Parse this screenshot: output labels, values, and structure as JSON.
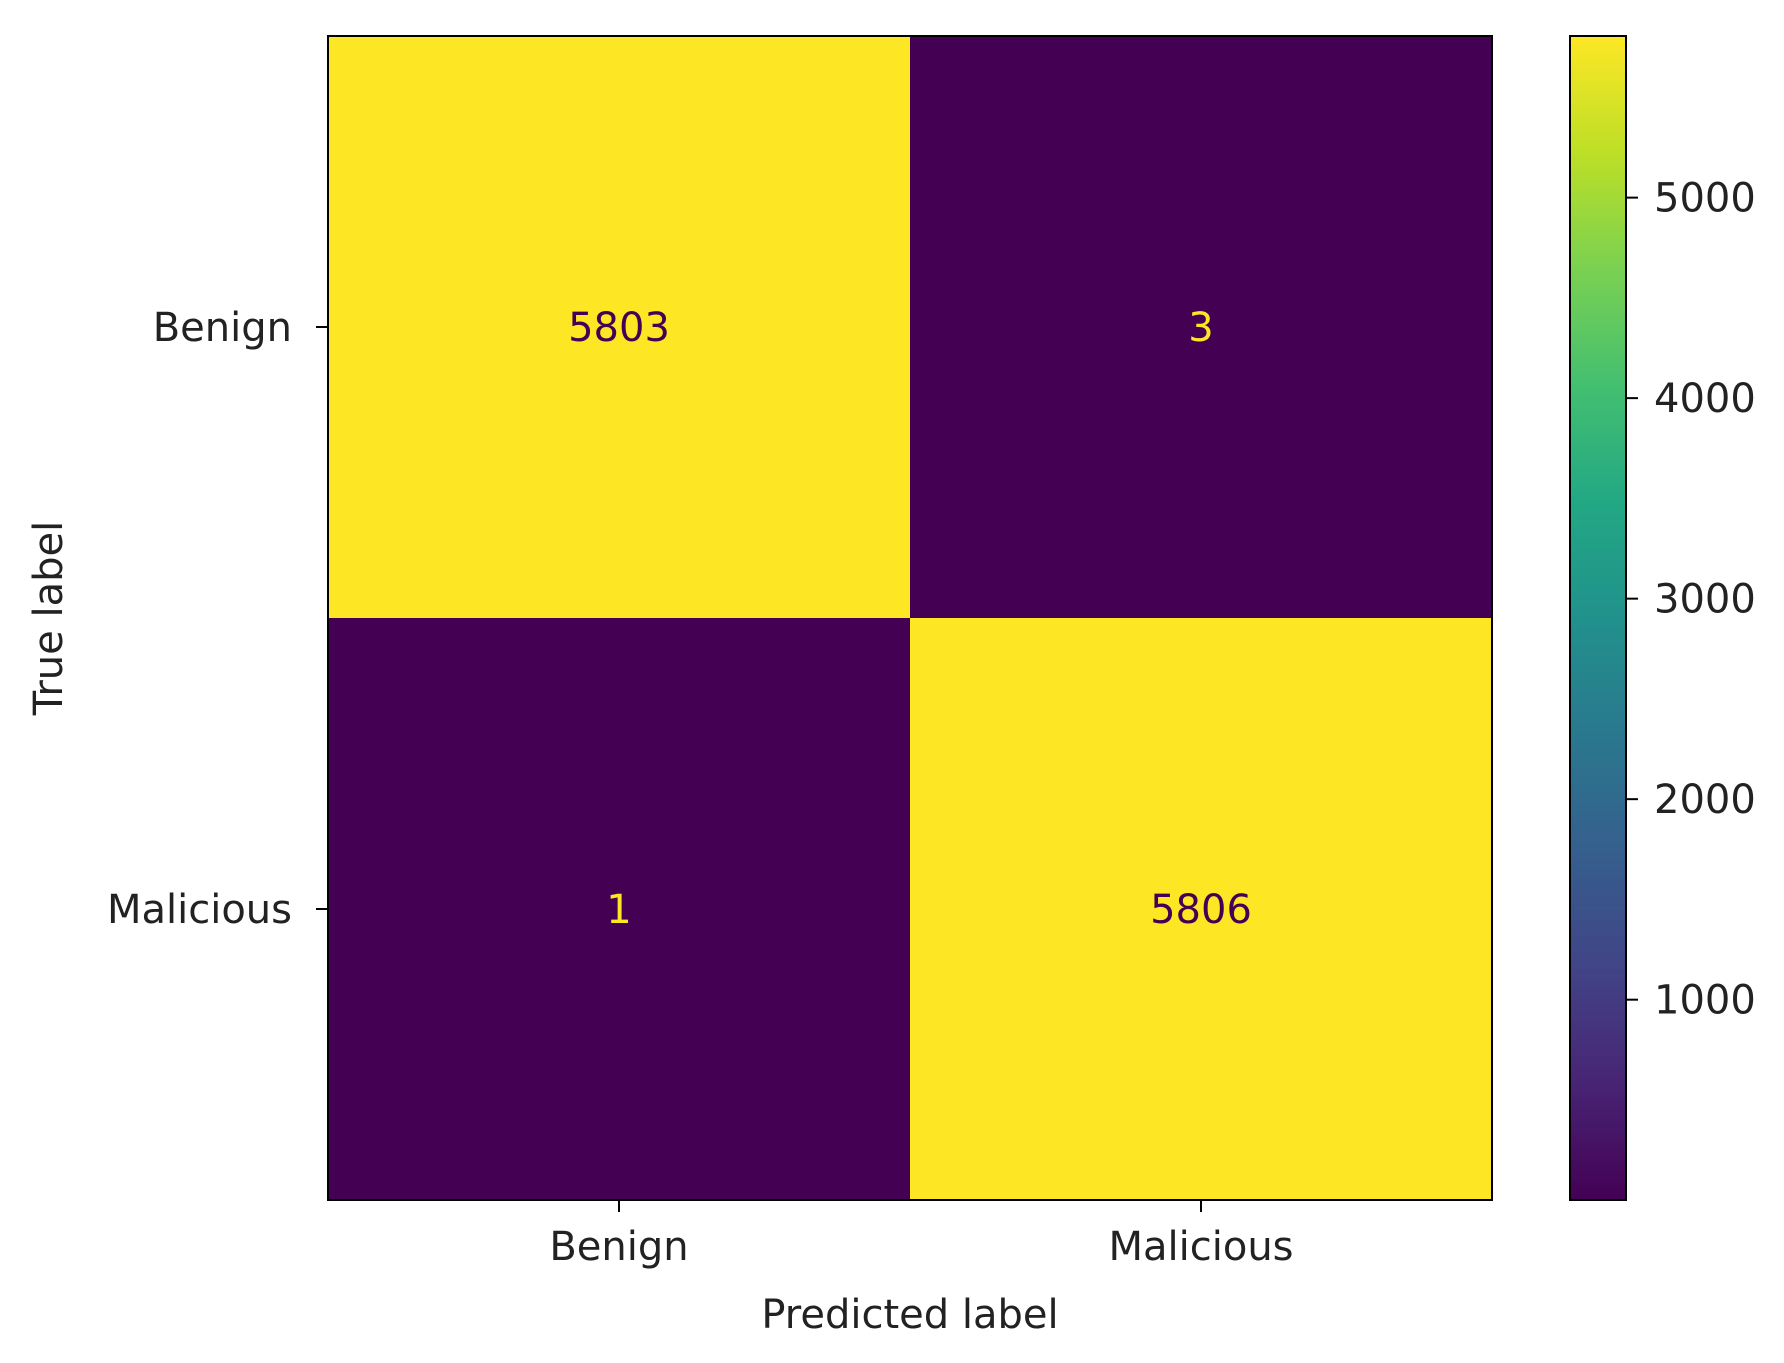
{
  "chart_data": {
    "type": "heatmap",
    "title": "",
    "xlabel": "Predicted label",
    "ylabel": "True label",
    "x_categories": [
      "Benign",
      "Malicious"
    ],
    "y_categories": [
      "Benign",
      "Malicious"
    ],
    "matrix": [
      [
        5803,
        3
      ],
      [
        1,
        5806
      ]
    ],
    "colormap": "viridis",
    "colorbar": {
      "range": [
        1,
        5806
      ],
      "ticks": [
        1000,
        2000,
        3000,
        4000,
        5000
      ],
      "tick_labels": [
        "1000",
        "2000",
        "3000",
        "4000",
        "5000"
      ]
    },
    "high_color": "#fde725",
    "low_color": "#440154",
    "text_on_high_color": "#440154",
    "text_on_low_color": "#fde725",
    "grid": false,
    "legend": "none"
  }
}
